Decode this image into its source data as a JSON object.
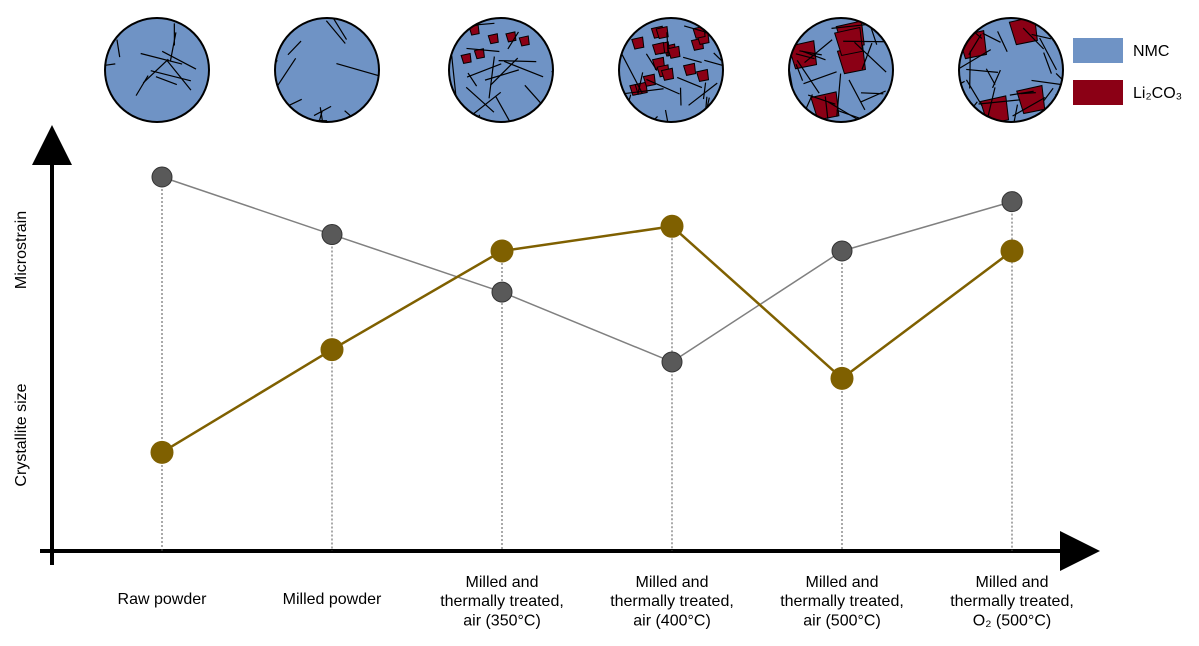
{
  "chart_data": {
    "type": "line",
    "categories": [
      "Raw powder",
      "Milled powder",
      "Milled and\nthermally treated,\nair (350°C)",
      "Milled and\nthermally treated,\nair (400°C)",
      "Milled and\nthermally treated,\nair (500°C)",
      "Milled and\nthermally treated,\nO₂ (500°C)"
    ],
    "series": [
      {
        "name": "Crystallite size",
        "color": "#595959",
        "values": [
          91,
          77,
          63,
          46,
          73,
          85
        ]
      },
      {
        "name": "Microstrain",
        "color": "#7f6000",
        "values": [
          24,
          49,
          73,
          79,
          42,
          73
        ]
      }
    ],
    "ylim": [
      0,
      100
    ],
    "legend": [
      {
        "name": "NMC",
        "color": "#6f93c5"
      },
      {
        "name": "Li₂CO₃",
        "color": "#8b0015"
      }
    ]
  }
}
